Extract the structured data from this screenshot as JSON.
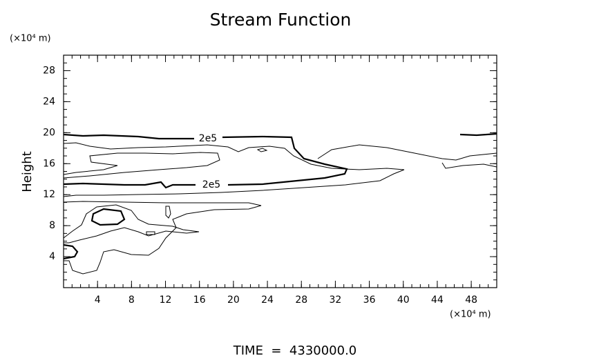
{
  "chart_data": {
    "type": "contour",
    "title": "Stream Function",
    "ylabel": "Height",
    "y_unit": "(×10⁴ m)",
    "x_unit": "(×10⁴ m)",
    "footer": "TIME  =  4330000.0",
    "xlim": [
      0,
      51
    ],
    "xticks": [
      4,
      8,
      12,
      16,
      20,
      24,
      28,
      32,
      36,
      40,
      44,
      48
    ],
    "ylim": [
      0,
      30
    ],
    "yticks": [
      4,
      8,
      12,
      16,
      20,
      24,
      28
    ],
    "minor_per_major": 4,
    "contours": [
      {
        "level": 200000,
        "label": "2e5"
      }
    ]
  }
}
